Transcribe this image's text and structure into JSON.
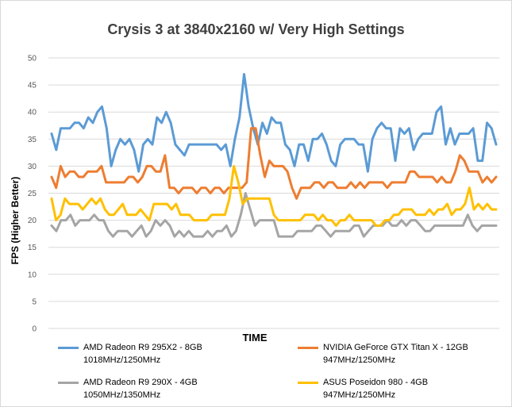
{
  "chart_data": {
    "type": "line",
    "title": "Crysis 3 at 3840x2160 w/ Very High Settings",
    "xlabel": "TIME",
    "ylabel": "FPS (Higher Better)",
    "ylim": [
      0,
      50
    ],
    "yticks": [
      "0",
      "5",
      "10",
      "15",
      "20",
      "25",
      "30",
      "35",
      "40",
      "45",
      "50"
    ],
    "grid": true,
    "legend_position": "bottom",
    "series": [
      {
        "name": "AMD Radeon R9 295X2 - 8GB",
        "subtitle": "1018MHz/1250MHz",
        "color": "#5b9bd5",
        "values": [
          36,
          33,
          37,
          37,
          37,
          38,
          38,
          37,
          39,
          38,
          40,
          41,
          37,
          30,
          33,
          35,
          34,
          35,
          33,
          29,
          34,
          35,
          34,
          39,
          38,
          40,
          38,
          34,
          33,
          32,
          34,
          34,
          34,
          34,
          34,
          34,
          34,
          33,
          34,
          30,
          35,
          39,
          47,
          41,
          37,
          34,
          38,
          36,
          39,
          38,
          38,
          34,
          33,
          30,
          34,
          34,
          31,
          35,
          35,
          36,
          34,
          31,
          30,
          34,
          35,
          35,
          35,
          34,
          34,
          29,
          35,
          37,
          38,
          37,
          37,
          31,
          37,
          36,
          37,
          33,
          35,
          36,
          36,
          36,
          40,
          41,
          34,
          37,
          34,
          36,
          36,
          36,
          37,
          31,
          31,
          38,
          37,
          34
        ]
      },
      {
        "name": "NVIDIA GeForce GTX Titan X - 12GB",
        "subtitle": "947MHz/1250MHz",
        "color": "#ed7d31",
        "values": [
          28,
          26,
          30,
          28,
          29,
          29,
          28,
          28,
          29,
          29,
          29,
          30,
          27,
          27,
          27,
          27,
          27,
          28,
          28,
          27,
          28,
          30,
          30,
          29,
          29,
          32,
          26,
          26,
          25,
          26,
          26,
          26,
          25,
          26,
          26,
          25,
          26,
          26,
          25,
          26,
          26,
          26,
          26,
          27,
          37,
          37,
          32,
          28,
          31,
          30,
          30,
          30,
          29,
          26,
          24,
          26,
          26,
          26,
          27,
          27,
          26,
          27,
          27,
          26,
          26,
          26,
          27,
          26,
          27,
          26,
          27,
          27,
          27,
          27,
          26,
          27,
          27,
          27,
          27,
          29,
          29,
          28,
          28,
          28,
          28,
          27,
          28,
          27,
          27,
          29,
          32,
          31,
          29,
          29,
          29,
          27,
          28,
          27,
          28
        ]
      },
      {
        "name": "AMD Radeon R9 290X - 4GB",
        "subtitle": "1050MHz/1350MHz",
        "color": "#a5a5a5",
        "values": [
          19,
          18,
          20,
          20,
          21,
          19,
          20,
          20,
          20,
          21,
          20,
          20,
          18,
          17,
          18,
          18,
          18,
          17,
          18,
          19,
          17,
          18,
          20,
          19,
          20,
          19,
          17,
          18,
          17,
          18,
          17,
          17,
          17,
          18,
          17,
          18,
          18,
          19,
          17,
          18,
          21,
          25,
          22,
          19,
          20,
          20,
          20,
          20,
          17,
          17,
          17,
          17,
          18,
          18,
          18,
          18,
          19,
          19,
          18,
          17,
          18,
          18,
          18,
          18,
          19,
          19,
          17,
          18,
          19,
          19,
          19,
          20,
          19,
          19,
          20,
          19,
          20,
          20,
          19,
          18,
          18,
          19,
          19,
          19,
          19,
          19,
          19,
          19,
          21,
          19,
          18,
          19,
          19,
          19,
          19
        ]
      },
      {
        "name": "ASUS Poseidon 980 - 4GB",
        "subtitle": "947MHz/1250MHz",
        "color": "#ffc000",
        "values": [
          24,
          20,
          21,
          24,
          23,
          23,
          23,
          22,
          23,
          24,
          23,
          24,
          22,
          21,
          21,
          22,
          23,
          21,
          21,
          21,
          22,
          21,
          20,
          23,
          23,
          23,
          23,
          22,
          23,
          21,
          21,
          21,
          20,
          20,
          20,
          20,
          21,
          21,
          21,
          21,
          24,
          30,
          27,
          23,
          24,
          24,
          24,
          24,
          24,
          24,
          21,
          20,
          20,
          20,
          20,
          20,
          20,
          21,
          21,
          21,
          20,
          21,
          20,
          20,
          19,
          20,
          20,
          21,
          20,
          20,
          20,
          20,
          20,
          19,
          19,
          20,
          20,
          21,
          21,
          22,
          22,
          22,
          21,
          21,
          21,
          22,
          21,
          22,
          22,
          23,
          21,
          22,
          22,
          23,
          26,
          22,
          23,
          22,
          23,
          22,
          22
        ]
      }
    ]
  }
}
